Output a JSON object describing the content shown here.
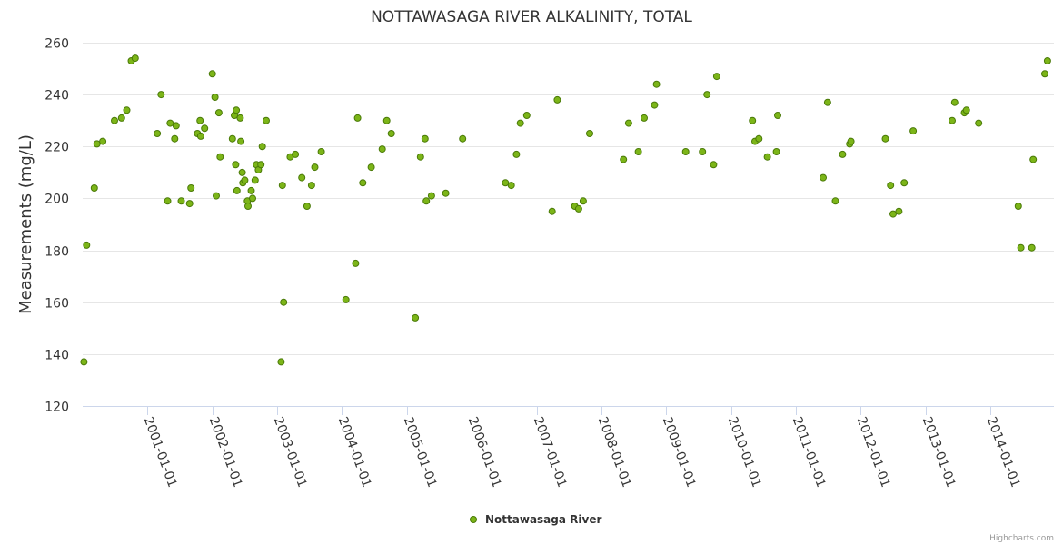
{
  "chart_data": {
    "type": "scatter",
    "title": "NOTTAWASAGA RIVER ALKALINITY, TOTAL",
    "ylabel": "Measurements (mg/L)",
    "xlabel": "",
    "ylim": [
      120,
      260
    ],
    "yticks": [
      120,
      140,
      160,
      180,
      200,
      220,
      240,
      260
    ],
    "xlim": [
      2000.0,
      2014.98
    ],
    "xticks": [
      {
        "label": "2001-01-01",
        "value": 2001.0
      },
      {
        "label": "2002-01-01",
        "value": 2002.0
      },
      {
        "label": "2003-01-01",
        "value": 2003.0
      },
      {
        "label": "2004-01-01",
        "value": 2004.0
      },
      {
        "label": "2005-01-01",
        "value": 2005.0
      },
      {
        "label": "2006-01-01",
        "value": 2006.0
      },
      {
        "label": "2007-01-01",
        "value": 2007.0
      },
      {
        "label": "2008-01-01",
        "value": 2008.0
      },
      {
        "label": "2009-01-01",
        "value": 2009.0
      },
      {
        "label": "2010-01-01",
        "value": 2010.0
      },
      {
        "label": "2011-01-01",
        "value": 2011.0
      },
      {
        "label": "2012-01-01",
        "value": 2012.0
      },
      {
        "label": "2013-01-01",
        "value": 2013.0
      },
      {
        "label": "2014-01-01",
        "value": 2014.0
      }
    ],
    "legend_position": "bottom-center",
    "series": [
      {
        "name": "Nottawasaga River",
        "color": "#7cb518",
        "stroke": "#4a7a08",
        "points": [
          [
            2000.02,
            137
          ],
          [
            2000.06,
            182
          ],
          [
            2000.18,
            204
          ],
          [
            2000.22,
            221
          ],
          [
            2000.31,
            222
          ],
          [
            2000.49,
            230
          ],
          [
            2000.6,
            231
          ],
          [
            2000.68,
            234
          ],
          [
            2000.75,
            253
          ],
          [
            2000.81,
            254
          ],
          [
            2001.15,
            225
          ],
          [
            2001.21,
            240
          ],
          [
            2001.31,
            199
          ],
          [
            2001.35,
            229
          ],
          [
            2001.42,
            223
          ],
          [
            2001.44,
            228
          ],
          [
            2001.52,
            199
          ],
          [
            2001.65,
            198
          ],
          [
            2001.67,
            204
          ],
          [
            2001.77,
            225
          ],
          [
            2001.81,
            230
          ],
          [
            2001.82,
            224
          ],
          [
            2001.88,
            227
          ],
          [
            2002.0,
            248
          ],
          [
            2002.04,
            239
          ],
          [
            2002.06,
            201
          ],
          [
            2002.1,
            233
          ],
          [
            2002.12,
            216
          ],
          [
            2002.31,
            223
          ],
          [
            2002.34,
            232
          ],
          [
            2002.36,
            213
          ],
          [
            2002.37,
            234
          ],
          [
            2002.38,
            203
          ],
          [
            2002.43,
            231
          ],
          [
            2002.44,
            222
          ],
          [
            2002.46,
            210
          ],
          [
            2002.47,
            206
          ],
          [
            2002.5,
            207
          ],
          [
            2002.54,
            199
          ],
          [
            2002.55,
            197
          ],
          [
            2002.6,
            203
          ],
          [
            2002.62,
            200
          ],
          [
            2002.66,
            207
          ],
          [
            2002.68,
            213
          ],
          [
            2002.71,
            211
          ],
          [
            2002.75,
            213
          ],
          [
            2002.77,
            220
          ],
          [
            2002.83,
            230
          ],
          [
            2003.06,
            137
          ],
          [
            2003.08,
            205
          ],
          [
            2003.1,
            160
          ],
          [
            2003.2,
            216
          ],
          [
            2003.28,
            217
          ],
          [
            2003.38,
            208
          ],
          [
            2003.46,
            197
          ],
          [
            2003.53,
            205
          ],
          [
            2003.58,
            212
          ],
          [
            2003.68,
            218
          ],
          [
            2004.06,
            161
          ],
          [
            2004.21,
            175
          ],
          [
            2004.24,
            231
          ],
          [
            2004.32,
            206
          ],
          [
            2004.45,
            212
          ],
          [
            2004.62,
            219
          ],
          [
            2004.69,
            230
          ],
          [
            2004.76,
            225
          ],
          [
            2005.13,
            154
          ],
          [
            2005.21,
            216
          ],
          [
            2005.28,
            223
          ],
          [
            2005.3,
            199
          ],
          [
            2005.38,
            201
          ],
          [
            2005.6,
            202
          ],
          [
            2005.86,
            223
          ],
          [
            2006.52,
            206
          ],
          [
            2006.61,
            205
          ],
          [
            2006.69,
            217
          ],
          [
            2006.75,
            229
          ],
          [
            2006.85,
            232
          ],
          [
            2007.24,
            195
          ],
          [
            2007.32,
            238
          ],
          [
            2007.59,
            197
          ],
          [
            2007.65,
            196
          ],
          [
            2007.72,
            199
          ],
          [
            2007.82,
            225
          ],
          [
            2008.34,
            215
          ],
          [
            2008.42,
            229
          ],
          [
            2008.57,
            218
          ],
          [
            2008.66,
            231
          ],
          [
            2008.82,
            236
          ],
          [
            2008.85,
            244
          ],
          [
            2009.3,
            218
          ],
          [
            2009.56,
            218
          ],
          [
            2009.63,
            240
          ],
          [
            2009.73,
            213
          ],
          [
            2009.78,
            247
          ],
          [
            2010.33,
            230
          ],
          [
            2010.37,
            222
          ],
          [
            2010.43,
            223
          ],
          [
            2010.56,
            216
          ],
          [
            2010.7,
            218
          ],
          [
            2010.72,
            232
          ],
          [
            2011.42,
            208
          ],
          [
            2011.49,
            237
          ],
          [
            2011.61,
            199
          ],
          [
            2011.72,
            217
          ],
          [
            2011.83,
            221
          ],
          [
            2011.85,
            222
          ],
          [
            2012.38,
            223
          ],
          [
            2012.46,
            205
          ],
          [
            2012.5,
            194
          ],
          [
            2012.59,
            195
          ],
          [
            2012.67,
            206
          ],
          [
            2012.81,
            226
          ],
          [
            2013.41,
            230
          ],
          [
            2013.45,
            237
          ],
          [
            2013.6,
            233
          ],
          [
            2013.63,
            234
          ],
          [
            2013.82,
            229
          ],
          [
            2014.43,
            197
          ],
          [
            2014.47,
            181
          ],
          [
            2014.64,
            181
          ],
          [
            2014.66,
            215
          ],
          [
            2014.84,
            248
          ],
          [
            2014.88,
            253
          ]
        ]
      }
    ]
  },
  "credits": "Highcharts.com"
}
